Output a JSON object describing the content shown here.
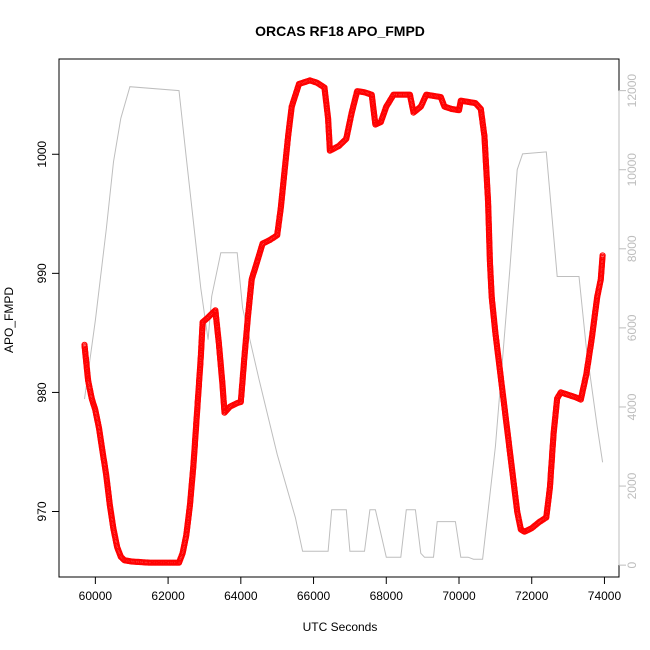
{
  "chart_data": {
    "type": "scatter",
    "title": "ORCAS RF18 APO_FMPD",
    "xlabel": "UTC Seconds",
    "ylabel": "APO_FMPD",
    "xlim": [
      59000,
      74400
    ],
    "ylim": [
      964.5,
      1008.0
    ],
    "xticks": [
      60000,
      62000,
      64000,
      66000,
      68000,
      70000,
      72000,
      74000
    ],
    "yticks": [
      970,
      980,
      990,
      1000
    ],
    "y2lim": [
      -300,
      12800
    ],
    "y2ticks": [
      0,
      2000,
      4000,
      6000,
      8000,
      10000,
      12000
    ],
    "grid": false,
    "legend": "none",
    "colors": {
      "points": "#ff0000",
      "line": "#bebebe",
      "axis": "#000000",
      "axis2": "#bdbdbd"
    },
    "series": [
      {
        "marker": "open-circle",
        "axis": "left",
        "points": [
          [
            59700,
            984.0
          ],
          [
            59800,
            981.0
          ],
          [
            59900,
            979.5
          ],
          [
            60000,
            978.5
          ],
          [
            60100,
            977.0
          ],
          [
            60200,
            975.0
          ],
          [
            60300,
            973.0
          ],
          [
            60400,
            970.5
          ],
          [
            60500,
            968.5
          ],
          [
            60600,
            967.0
          ],
          [
            60700,
            966.2
          ],
          [
            60800,
            965.9
          ],
          [
            61000,
            965.8
          ],
          [
            61500,
            965.7
          ],
          [
            62000,
            965.7
          ],
          [
            62300,
            965.7
          ],
          [
            62400,
            966.5
          ],
          [
            62500,
            968.0
          ],
          [
            62600,
            970.5
          ],
          [
            62700,
            974.0
          ],
          [
            62800,
            978.5
          ],
          [
            62900,
            983.0
          ],
          [
            62950,
            985.9
          ],
          [
            63100,
            986.3
          ],
          [
            63300,
            986.9
          ],
          [
            63400,
            984.0
          ],
          [
            63500,
            980.5
          ],
          [
            63550,
            978.3
          ],
          [
            63700,
            978.8
          ],
          [
            63900,
            979.1
          ],
          [
            64000,
            979.2
          ],
          [
            64100,
            983.0
          ],
          [
            64200,
            986.5
          ],
          [
            64300,
            989.5
          ],
          [
            64400,
            990.5
          ],
          [
            64500,
            991.5
          ],
          [
            64600,
            992.5
          ],
          [
            64800,
            992.8
          ],
          [
            65000,
            993.2
          ],
          [
            65100,
            995.5
          ],
          [
            65200,
            998.5
          ],
          [
            65300,
            1001.5
          ],
          [
            65400,
            1004.0
          ],
          [
            65600,
            1005.9
          ],
          [
            65800,
            1006.1
          ],
          [
            65900,
            1006.2
          ],
          [
            66100,
            1006.0
          ],
          [
            66300,
            1005.6
          ],
          [
            66400,
            1003.0
          ],
          [
            66450,
            1000.3
          ],
          [
            66700,
            1000.7
          ],
          [
            66900,
            1001.3
          ],
          [
            67050,
            1003.5
          ],
          [
            67200,
            1005.3
          ],
          [
            67400,
            1005.2
          ],
          [
            67600,
            1005.0
          ],
          [
            67700,
            1002.5
          ],
          [
            67850,
            1002.7
          ],
          [
            68000,
            1004.0
          ],
          [
            68200,
            1005.0
          ],
          [
            68450,
            1005.0
          ],
          [
            68650,
            1005.0
          ],
          [
            68750,
            1003.5
          ],
          [
            68950,
            1004.0
          ],
          [
            69100,
            1005.0
          ],
          [
            69300,
            1004.9
          ],
          [
            69500,
            1004.8
          ],
          [
            69600,
            1004.0
          ],
          [
            69800,
            1003.8
          ],
          [
            70000,
            1003.7
          ],
          [
            70050,
            1004.5
          ],
          [
            70250,
            1004.4
          ],
          [
            70450,
            1004.3
          ],
          [
            70600,
            1003.8
          ],
          [
            70700,
            1001.5
          ],
          [
            70800,
            996.0
          ],
          [
            70850,
            991.0
          ],
          [
            70900,
            988.0
          ],
          [
            71000,
            985.0
          ],
          [
            71100,
            982.5
          ],
          [
            71200,
            980.0
          ],
          [
            71300,
            977.5
          ],
          [
            71400,
            975.0
          ],
          [
            71500,
            972.5
          ],
          [
            71600,
            970.0
          ],
          [
            71700,
            968.5
          ],
          [
            71800,
            968.3
          ],
          [
            72000,
            968.6
          ],
          [
            72200,
            969.1
          ],
          [
            72400,
            969.5
          ],
          [
            72500,
            972.0
          ],
          [
            72600,
            976.5
          ],
          [
            72700,
            979.5
          ],
          [
            72800,
            980.0
          ],
          [
            73000,
            979.8
          ],
          [
            73200,
            979.6
          ],
          [
            73350,
            979.4
          ],
          [
            73500,
            981.5
          ],
          [
            73650,
            984.5
          ],
          [
            73800,
            988.0
          ],
          [
            73900,
            989.5
          ],
          [
            73950,
            991.5
          ]
        ]
      },
      {
        "marker": "line",
        "axis": "right",
        "points": [
          [
            59700,
            4200
          ],
          [
            60000,
            6200
          ],
          [
            60300,
            8500
          ],
          [
            60500,
            10200
          ],
          [
            60700,
            11300
          ],
          [
            60950,
            12100
          ],
          [
            62300,
            12000
          ],
          [
            62500,
            10300
          ],
          [
            62900,
            7000
          ],
          [
            63100,
            5700
          ],
          [
            63200,
            6800
          ],
          [
            63450,
            7900
          ],
          [
            63900,
            7900
          ],
          [
            64050,
            6500
          ],
          [
            64500,
            4700
          ],
          [
            65000,
            2800
          ],
          [
            65500,
            1200
          ],
          [
            65700,
            350
          ],
          [
            66400,
            350
          ],
          [
            66500,
            1400
          ],
          [
            66900,
            1400
          ],
          [
            67000,
            350
          ],
          [
            67400,
            350
          ],
          [
            67550,
            1400
          ],
          [
            67700,
            1400
          ],
          [
            68000,
            200
          ],
          [
            68400,
            200
          ],
          [
            68550,
            1400
          ],
          [
            68800,
            1400
          ],
          [
            68950,
            300
          ],
          [
            69050,
            200
          ],
          [
            69300,
            200
          ],
          [
            69400,
            1100
          ],
          [
            69900,
            1100
          ],
          [
            70050,
            200
          ],
          [
            70250,
            200
          ],
          [
            70400,
            150
          ],
          [
            70650,
            150
          ],
          [
            71000,
            3000
          ],
          [
            71400,
            7500
          ],
          [
            71600,
            10000
          ],
          [
            71750,
            10400
          ],
          [
            72400,
            10450
          ],
          [
            72700,
            7300
          ],
          [
            73300,
            7300
          ],
          [
            73500,
            5500
          ],
          [
            73800,
            3500
          ],
          [
            73950,
            2600
          ]
        ]
      }
    ]
  }
}
